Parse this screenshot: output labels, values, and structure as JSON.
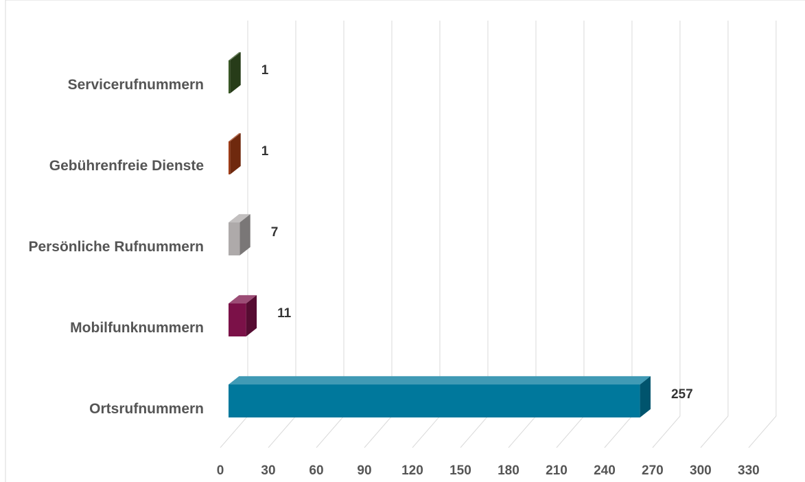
{
  "chart_data": {
    "type": "bar",
    "orientation": "horizontal",
    "style": "3d",
    "title": "",
    "xlabel": "",
    "ylabel": "",
    "categories": [
      "Servicerufnummern",
      "Gebührenfreie Dienste",
      "Persönliche Rufnummern",
      "Mobilfunknummern",
      "Ortsrufnummern"
    ],
    "values": [
      1,
      1,
      7,
      11,
      257
    ],
    "data_labels": [
      "1",
      "1",
      "7",
      "11",
      "257"
    ],
    "colors": [
      "#375623",
      "#9E3A14",
      "#AEAAAA",
      "#7B1148",
      "#00789C"
    ],
    "xlim": [
      0,
      330
    ],
    "ticks": [
      0,
      30,
      60,
      90,
      120,
      150,
      180,
      210,
      240,
      270,
      300,
      330
    ],
    "tick_labels": [
      "0",
      "30",
      "60",
      "90",
      "120",
      "150",
      "180",
      "210",
      "240",
      "270",
      "300",
      "330"
    ],
    "grid": true,
    "legend": "none"
  }
}
